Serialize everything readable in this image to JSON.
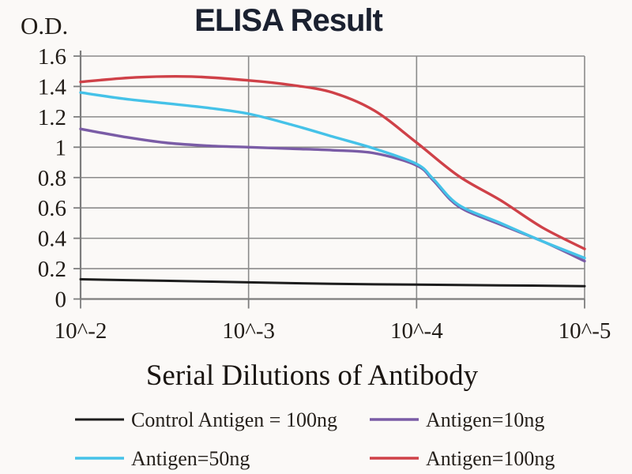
{
  "chart_data": {
    "type": "line",
    "title": "ELISA Result",
    "ylabel": "O.D.",
    "xlabel": "Serial Dilutions of Antibody",
    "x_ticklabels": [
      "10^-2",
      "10^-3",
      "10^-4",
      "10^-5"
    ],
    "x_tick_values": [
      -2,
      -3,
      -4,
      -5
    ],
    "y_tick_labels": [
      "0",
      "0.2",
      "0.4",
      "0.6",
      "0.8",
      "1",
      "1.2",
      "1.4",
      "1.6"
    ],
    "y_ticks": [
      0,
      0.2,
      0.4,
      0.6,
      0.8,
      1.0,
      1.2,
      1.4,
      1.6
    ],
    "ylim": [
      0,
      1.6
    ],
    "xlim": [
      -2,
      -5
    ],
    "grid": true,
    "legend_position": "bottom",
    "colors": {
      "grid": "#8b8b8b",
      "axis": "#7d7d7d",
      "tick_text": "#211c17",
      "title_text": "#1b2130",
      "legend_text": "#241f1a",
      "background": "#fbf9f7"
    },
    "series": [
      {
        "name": "Control Antigen = 100ng",
        "color": "#1d1d1d",
        "x": [
          -2,
          -2.5,
          -3,
          -3.5,
          -4,
          -4.5,
          -5
        ],
        "values": [
          0.13,
          0.12,
          0.11,
          0.1,
          0.095,
          0.09,
          0.085
        ]
      },
      {
        "name": "Antigen=10ng",
        "color": "#7a5ca6",
        "x": [
          -2,
          -2.25,
          -2.5,
          -2.75,
          -3,
          -3.25,
          -3.5,
          -3.75,
          -4,
          -4.1,
          -4.25,
          -4.5,
          -4.75,
          -5
        ],
        "values": [
          1.12,
          1.07,
          1.03,
          1.01,
          1.0,
          0.99,
          0.98,
          0.96,
          0.88,
          0.78,
          0.61,
          0.49,
          0.38,
          0.25
        ]
      },
      {
        "name": "Antigen=50ng",
        "color": "#45c2e8",
        "x": [
          -2,
          -2.25,
          -2.5,
          -2.75,
          -3,
          -3.25,
          -3.5,
          -3.75,
          -4,
          -4.1,
          -4.25,
          -4.5,
          -4.75,
          -5
        ],
        "values": [
          1.36,
          1.32,
          1.29,
          1.26,
          1.22,
          1.15,
          1.07,
          0.99,
          0.89,
          0.79,
          0.62,
          0.5,
          0.38,
          0.27
        ]
      },
      {
        "name": "Antigen=100ng",
        "color": "#cf4148",
        "x": [
          -2,
          -2.33,
          -2.66,
          -3,
          -3.25,
          -3.5,
          -3.75,
          -4,
          -4.25,
          -4.5,
          -4.75,
          -5
        ],
        "values": [
          1.43,
          1.46,
          1.465,
          1.44,
          1.41,
          1.36,
          1.24,
          1.03,
          0.81,
          0.65,
          0.47,
          0.33
        ]
      }
    ]
  }
}
